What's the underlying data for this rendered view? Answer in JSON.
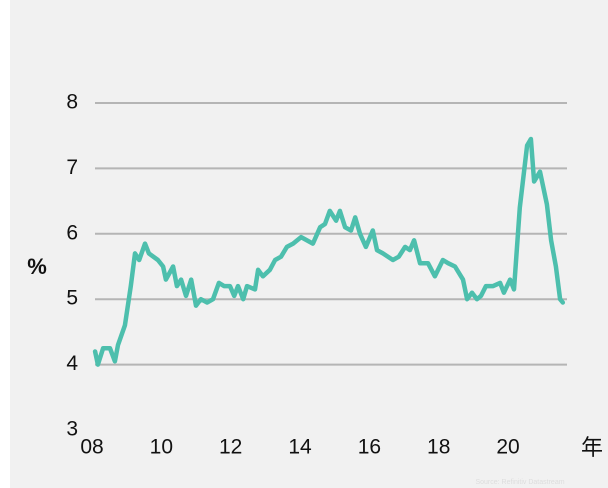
{
  "chart_data": {
    "type": "line",
    "y_label": "%",
    "x_label": "年",
    "source": "Source: Refinitiv Datastream",
    "xlim": [
      2008,
      2021.7
    ],
    "xticks": [
      {
        "value": 2008,
        "label": "08"
      },
      {
        "value": 2010,
        "label": "10"
      },
      {
        "value": 2012,
        "label": "12"
      },
      {
        "value": 2014,
        "label": "14"
      },
      {
        "value": 2016,
        "label": "16"
      },
      {
        "value": 2018,
        "label": "18"
      },
      {
        "value": 2020,
        "label": "20"
      }
    ],
    "ylim": [
      3,
      8
    ],
    "yticks": [
      3,
      4,
      5,
      6,
      7,
      8
    ],
    "grid": true,
    "x": [
      2008.09,
      2008.17,
      2008.32,
      2008.52,
      2008.66,
      2008.75,
      2008.95,
      2009.12,
      2009.24,
      2009.36,
      2009.53,
      2009.64,
      2009.9,
      2010.05,
      2010.13,
      2010.34,
      2010.45,
      2010.57,
      2010.71,
      2010.86,
      2011.0,
      2011.14,
      2011.32,
      2011.49,
      2011.66,
      2011.81,
      2011.98,
      2012.1,
      2012.21,
      2012.36,
      2012.47,
      2012.7,
      2012.79,
      2012.93,
      2013.13,
      2013.28,
      2013.45,
      2013.62,
      2013.8,
      2014.03,
      2014.37,
      2014.58,
      2014.72,
      2014.86,
      2015.04,
      2015.15,
      2015.3,
      2015.47,
      2015.59,
      2015.73,
      2015.9,
      2016.1,
      2016.22,
      2016.39,
      2016.68,
      2016.85,
      2017.03,
      2017.17,
      2017.29,
      2017.46,
      2017.69,
      2017.89,
      2018.12,
      2018.27,
      2018.47,
      2018.7,
      2018.82,
      2018.96,
      2019.1,
      2019.22,
      2019.36,
      2019.57,
      2019.77,
      2019.88,
      2020.06,
      2020.17,
      2020.34,
      2020.55,
      2020.66,
      2020.75,
      2020.92,
      2021.12,
      2021.24,
      2021.38,
      2021.5,
      2021.58
    ],
    "series": [
      {
        "color": "#4dbfad",
        "values": [
          4.2,
          4.0,
          4.25,
          4.25,
          4.05,
          4.3,
          4.6,
          5.2,
          5.7,
          5.6,
          5.85,
          5.7,
          5.6,
          5.5,
          5.3,
          5.5,
          5.2,
          5.3,
          5.05,
          5.3,
          4.9,
          5.0,
          4.95,
          5.0,
          5.25,
          5.2,
          5.2,
          5.05,
          5.2,
          5.0,
          5.2,
          5.15,
          5.45,
          5.35,
          5.45,
          5.6,
          5.65,
          5.8,
          5.85,
          5.95,
          5.85,
          6.1,
          6.15,
          6.35,
          6.2,
          6.35,
          6.1,
          6.05,
          6.25,
          6.0,
          5.8,
          6.05,
          5.75,
          5.7,
          5.6,
          5.65,
          5.8,
          5.75,
          5.9,
          5.55,
          5.55,
          5.35,
          5.6,
          5.55,
          5.5,
          5.3,
          5.0,
          5.1,
          5.0,
          5.05,
          5.2,
          5.2,
          5.25,
          5.1,
          5.3,
          5.15,
          6.4,
          7.35,
          7.45,
          6.8,
          6.95,
          6.45,
          5.9,
          5.5,
          5.0,
          4.95
        ]
      }
    ]
  }
}
